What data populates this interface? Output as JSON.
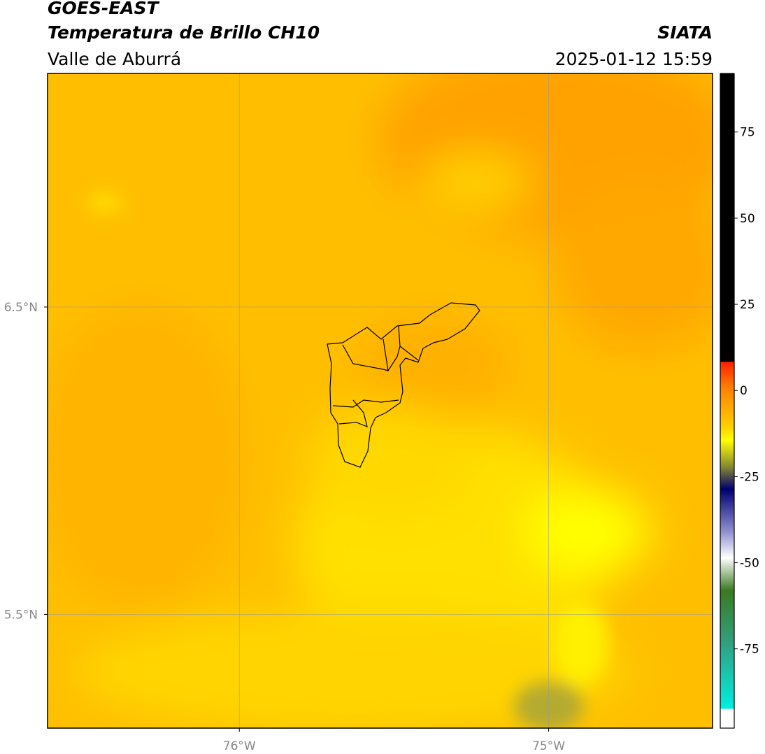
{
  "header": {
    "title": "GOES-EAST",
    "subtitle": "Temperatura de Brillo CH10",
    "region": "Valle de Aburrá",
    "source": "SIATA",
    "timestamp": "2025-01-12 15:59"
  },
  "map": {
    "lat_lim": [
      5.13,
      7.26
    ],
    "lon_lim": [
      -76.62,
      -74.47
    ],
    "lat_ticks": [
      {
        "value": 6.5,
        "label": "6.5°N"
      },
      {
        "value": 5.5,
        "label": "5.5°N"
      }
    ],
    "lon_ticks": [
      {
        "value": -76,
        "label": "76°W"
      },
      {
        "value": -75,
        "label": "75°W"
      }
    ]
  },
  "colorbar": {
    "lim": [
      -98,
      92
    ],
    "ticks": [
      75,
      50,
      25,
      0,
      -25,
      -50,
      -75
    ]
  }
}
